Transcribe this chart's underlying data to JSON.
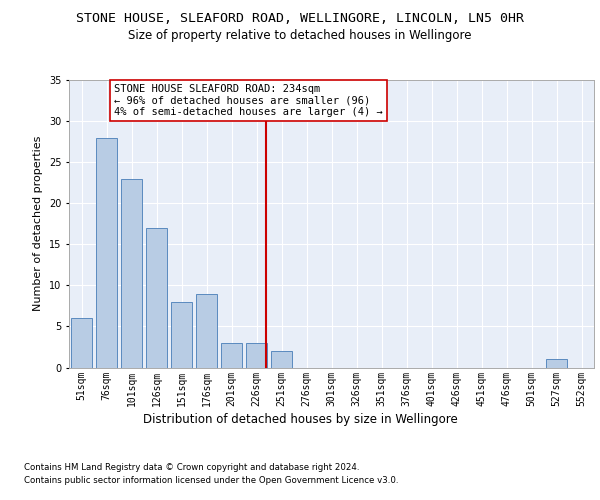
{
  "title": "STONE HOUSE, SLEAFORD ROAD, WELLINGORE, LINCOLN, LN5 0HR",
  "subtitle": "Size of property relative to detached houses in Wellingore",
  "xlabel": "Distribution of detached houses by size in Wellingore",
  "ylabel": "Number of detached properties",
  "footer1": "Contains HM Land Registry data © Crown copyright and database right 2024.",
  "footer2": "Contains public sector information licensed under the Open Government Licence v3.0.",
  "categories": [
    "51sqm",
    "76sqm",
    "101sqm",
    "126sqm",
    "151sqm",
    "176sqm",
    "201sqm",
    "226sqm",
    "251sqm",
    "276sqm",
    "301sqm",
    "326sqm",
    "351sqm",
    "376sqm",
    "401sqm",
    "426sqm",
    "451sqm",
    "476sqm",
    "501sqm",
    "527sqm",
    "552sqm"
  ],
  "values": [
    6,
    28,
    23,
    17,
    8,
    9,
    3,
    3,
    2,
    0,
    0,
    0,
    0,
    0,
    0,
    0,
    0,
    0,
    0,
    1,
    0
  ],
  "bar_color": "#b8cce4",
  "bar_edge_color": "#5a8abf",
  "vline_x": 7.36,
  "annotation_text": "STONE HOUSE SLEAFORD ROAD: 234sqm\n← 96% of detached houses are smaller (96)\n4% of semi-detached houses are larger (4) →",
  "annotation_box_color": "#ffffff",
  "annotation_box_edge_color": "#cc0000",
  "vline_color": "#cc0000",
  "ylim": [
    0,
    35
  ],
  "yticks": [
    0,
    5,
    10,
    15,
    20,
    25,
    30,
    35
  ],
  "bg_color": "#e8eef8",
  "grid_color": "#ffffff",
  "title_fontsize": 9.5,
  "subtitle_fontsize": 8.5,
  "ylabel_fontsize": 8,
  "xlabel_fontsize": 8.5,
  "tick_fontsize": 7,
  "annot_fontsize": 7.5,
  "footer_fontsize": 6.2
}
